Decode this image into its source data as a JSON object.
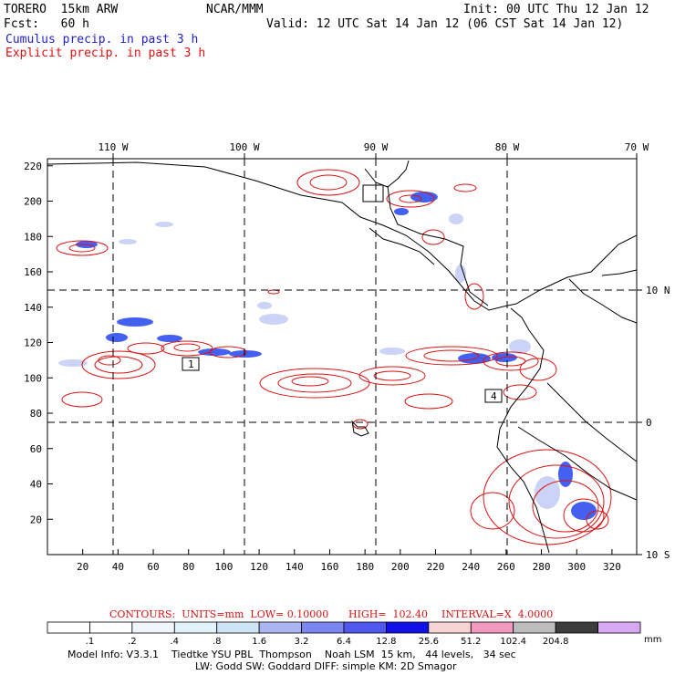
{
  "header": {
    "model": "TORERO  15km ARW",
    "org": "NCAR/MMM",
    "init": "Init: 00 UTC Thu 12 Jan 12",
    "fcst": "Fcst:   60 h",
    "valid": "Valid: 12 UTC Sat 14 Jan 12 (06 CST Sat 14 Jan 12)",
    "cumulus": "Cumulus precip. in past 3 h",
    "explicit": "Explicit precip. in past 3 h"
  },
  "map": {
    "x_ticks": [
      20,
      40,
      60,
      80,
      100,
      120,
      140,
      160,
      180,
      200,
      220,
      240,
      260,
      280,
      300,
      320
    ],
    "y_ticks": [
      20,
      40,
      60,
      80,
      100,
      120,
      140,
      160,
      180,
      200,
      220
    ],
    "lon_labels": [
      "110 W",
      "100 W",
      "90 W",
      "80 W",
      "70 W"
    ],
    "lat_labels": [
      "10 N",
      "0",
      "10 S"
    ],
    "box_labels": [
      "1",
      "4"
    ],
    "colors": {
      "cumulus": "#2244ee",
      "explicit": "#dd1111",
      "coast": "#000000",
      "grid": "#000000"
    }
  },
  "contours": {
    "label": "CONTOURS:  UNITS=mm  LOW= 0.10000",
    "high": "HIGH=  102.40",
    "interval": "INTERVAL=X  4.0000"
  },
  "legend": {
    "labels": [
      ".1",
      ".2",
      ".4",
      ".8",
      "1.6",
      "3.2",
      "6.4",
      "12.8",
      "25.6",
      "51.2",
      "102.4",
      "204.8"
    ],
    "unit": "mm",
    "colors": [
      "#ffffff",
      "#ffffff",
      "#f0f6fc",
      "#e4f2fb",
      "#cfe3f7",
      "#a9b6f2",
      "#7c86f1",
      "#4f59f0",
      "#1010e8",
      "#f7d3d3",
      "#f09ac0",
      "#bdbdbd",
      "#3c3c3c",
      "#d8a8f4"
    ]
  },
  "footer": {
    "line1": "Model Info: V3.3.1    Tiedtke YSU PBL  Thompson    Noah LSM  15 km,   44 levels,   34 sec",
    "line2": "LW: Godd SW: Goddard DIFF: simple KM: 2D Smagor"
  }
}
